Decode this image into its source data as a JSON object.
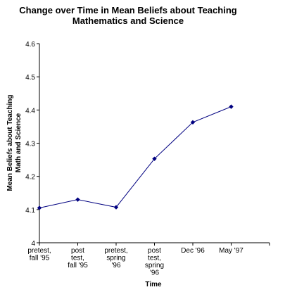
{
  "chart_data": {
    "type": "line",
    "title": [
      "Change over Time in Mean Beliefs about Teaching",
      "Mathematics and Science"
    ],
    "xlabel": "Time",
    "ylabel": [
      "Mean Beliefs about Teaching",
      "Math and Science"
    ],
    "categories": [
      [
        "pretest,",
        "fall '95"
      ],
      [
        "post",
        "test,",
        "fall '95"
      ],
      [
        "pretest,",
        "spring",
        "'96"
      ],
      [
        "post",
        "test,",
        "spring",
        "'96"
      ],
      [
        "Dec '96"
      ],
      [
        "May '97"
      ]
    ],
    "series": [
      {
        "values": [
          4.105,
          4.13,
          4.107,
          4.253,
          4.363,
          4.41
        ],
        "color": "#000080"
      }
    ],
    "ylim": [
      4,
      4.6
    ],
    "yticks": [
      "4",
      "4.1",
      "4.2",
      "4.3",
      "4.4",
      "4.5",
      "4.6"
    ],
    "grid": false,
    "legend": "none"
  }
}
